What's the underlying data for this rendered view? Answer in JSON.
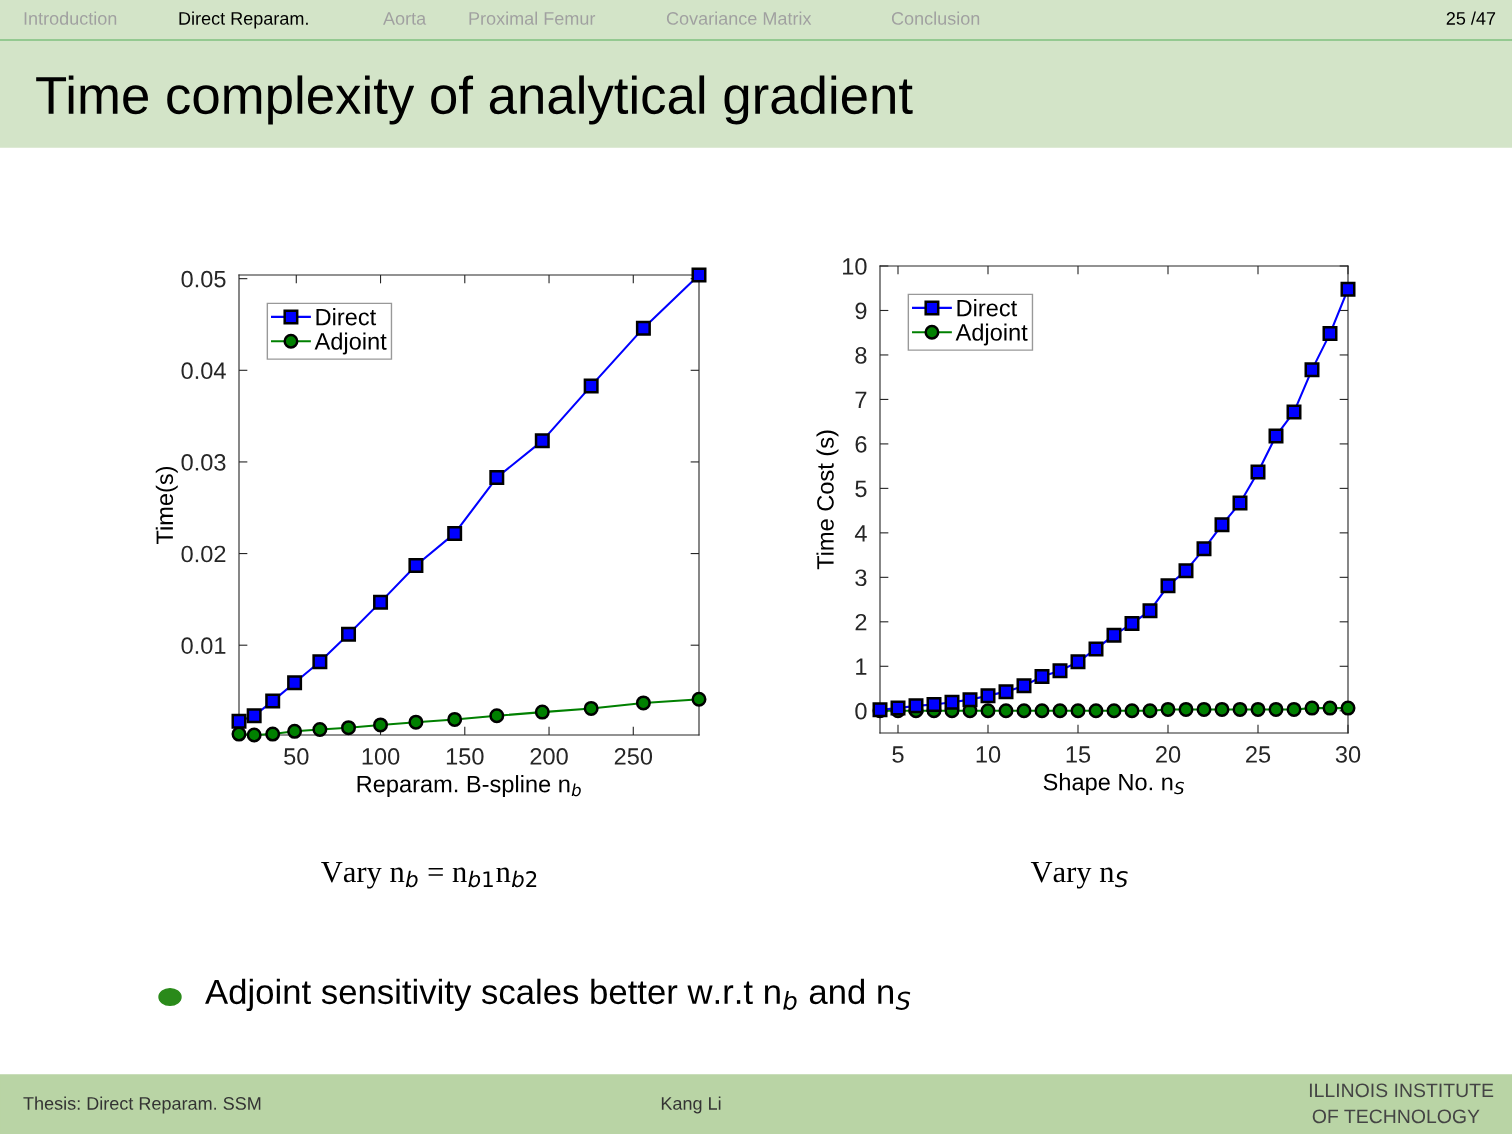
{
  "chart_data": [
    {
      "type": "line",
      "xlabel": "Reparam. B-spline n$_{b}$",
      "ylabel": "Time(s)",
      "x": [
        16,
        25,
        36,
        49,
        64,
        81,
        100,
        121,
        144,
        169,
        196,
        225,
        256,
        289
      ],
      "series": [
        {
          "name": "Direct",
          "color": "#0000ff",
          "marker": "square",
          "values": [
            0.0017,
            0.0023,
            0.0039,
            0.0059,
            0.0082,
            0.0112,
            0.0147,
            0.0187,
            0.0222,
            0.0283,
            0.0323,
            0.0383,
            0.0446,
            0.0504
          ]
        },
        {
          "name": "Adjoint",
          "color": "#008000",
          "marker": "circle",
          "values": [
            0.0003,
            0.0002,
            0.0003,
            0.0006,
            0.0008,
            0.001,
            0.0013,
            0.0016,
            0.0019,
            0.0023,
            0.0027,
            0.0031,
            0.0037,
            0.0041
          ]
        }
      ],
      "xlim": [
        16,
        289
      ],
      "ylim": [
        0.0002,
        0.0504
      ],
      "xticks": [
        50,
        100,
        150,
        200,
        250
      ],
      "yticks": [
        0.01,
        0.02,
        0.03,
        0.04,
        0.05
      ],
      "grid": false,
      "legend": "top left",
      "line_style": "solid",
      "annotations": [
        "Vary n$_{b}$ = n$_{b1}$n$_{b2}$",
        "Introduction",
        "Direct Reparam.",
        "Aorta",
        "Proximal Femur",
        "Covariance Matrix",
        "Conclusion",
        "25 /47",
        "Time complexity of analytical gradient",
        "Adjoint sensitivity scales better w.r.t n$_{b}$ and n$_{S}$",
        "Thesis: Direct Reparam. SSM",
        "Kang Li",
        "ILLINOIS INSTITUTE",
        "OF TECHNOLOGY"
      ]
    },
    {
      "type": "line",
      "xlabel": "Shape No. n$_{S}$",
      "ylabel": "Time Cost (s)",
      "x": [
        4,
        5,
        6,
        7,
        8,
        9,
        10,
        11,
        12,
        13,
        14,
        15,
        16,
        17,
        18,
        19,
        20,
        21,
        22,
        23,
        24,
        25,
        26,
        27,
        28,
        29,
        30
      ],
      "series": [
        {
          "name": "Direct",
          "color": "#0000ff",
          "marker": "square",
          "values": [
            0.02,
            0.06,
            0.11,
            0.14,
            0.19,
            0.25,
            0.34,
            0.43,
            0.56,
            0.77,
            0.9,
            1.1,
            1.39,
            1.7,
            1.96,
            2.25,
            2.81,
            3.15,
            3.64,
            4.18,
            4.67,
            5.37,
            6.18,
            6.72,
            7.67,
            8.48,
            9.48
          ]
        },
        {
          "name": "Adjoint",
          "color": "#008000",
          "marker": "circle",
          "values": [
            0.0,
            0.0,
            0.0,
            0.0,
            0.0,
            0.0,
            0.0,
            0.0,
            0.0,
            0.0,
            0.0,
            0.0,
            0.0,
            0.0,
            0.0,
            0.0,
            0.03,
            0.03,
            0.03,
            0.03,
            0.03,
            0.03,
            0.03,
            0.03,
            0.06,
            0.06,
            0.06
          ]
        }
      ],
      "xlim": [
        4,
        30
      ],
      "ylim": [
        -0.5,
        10
      ],
      "xticks": [
        5,
        10,
        15,
        20,
        25,
        30
      ],
      "yticks": [
        0,
        1,
        2,
        3,
        4,
        5,
        6,
        7,
        8,
        9,
        10
      ],
      "grid": false,
      "legend": "top left",
      "line_style": "solid",
      "annotations": [
        "Vary n$_{S}$"
      ]
    }
  ]
}
